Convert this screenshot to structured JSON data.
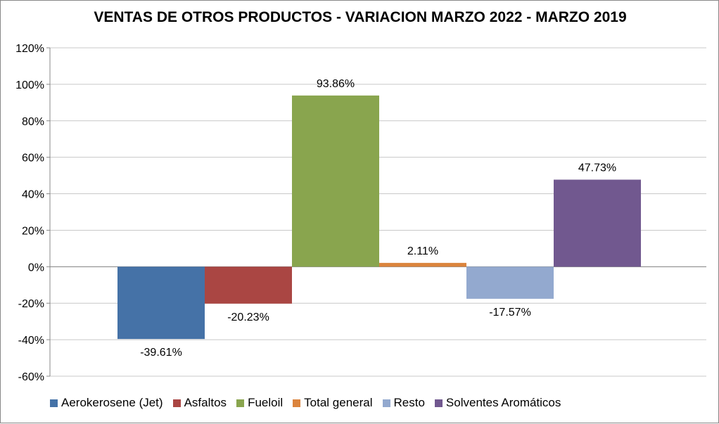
{
  "chart_data": {
    "type": "bar",
    "title": "VENTAS DE OTROS PRODUCTOS - VARIACION MARZO 2022 - MARZO 2019",
    "xlabel": "",
    "ylabel": "",
    "ylim": [
      -60,
      120
    ],
    "yticks": [
      "120%",
      "100%",
      "80%",
      "60%",
      "40%",
      "20%",
      "0%",
      "-20%",
      "-40%",
      "-60%"
    ],
    "ytick_values": [
      120,
      100,
      80,
      60,
      40,
      20,
      0,
      -20,
      -40,
      -60
    ],
    "grid": true,
    "legend_position": "bottom",
    "series": [
      {
        "name": "Aerokerosene (Jet)",
        "value": -39.61,
        "label": "-39.61%",
        "color": "#4572A7"
      },
      {
        "name": "Asfaltos",
        "value": -20.23,
        "label": "-20.23%",
        "color": "#AA4643"
      },
      {
        "name": "Fueloil",
        "value": 93.86,
        "label": "93.86%",
        "color": "#89A54E"
      },
      {
        "name": "Total general",
        "value": 2.11,
        "label": "2.11%",
        "color": "#DB843D"
      },
      {
        "name": "Resto",
        "value": -17.57,
        "label": "-17.57%",
        "color": "#93A9CF"
      },
      {
        "name": "Solventes Aromáticos",
        "value": 47.73,
        "label": "47.73%",
        "color": "#71588F"
      }
    ]
  }
}
